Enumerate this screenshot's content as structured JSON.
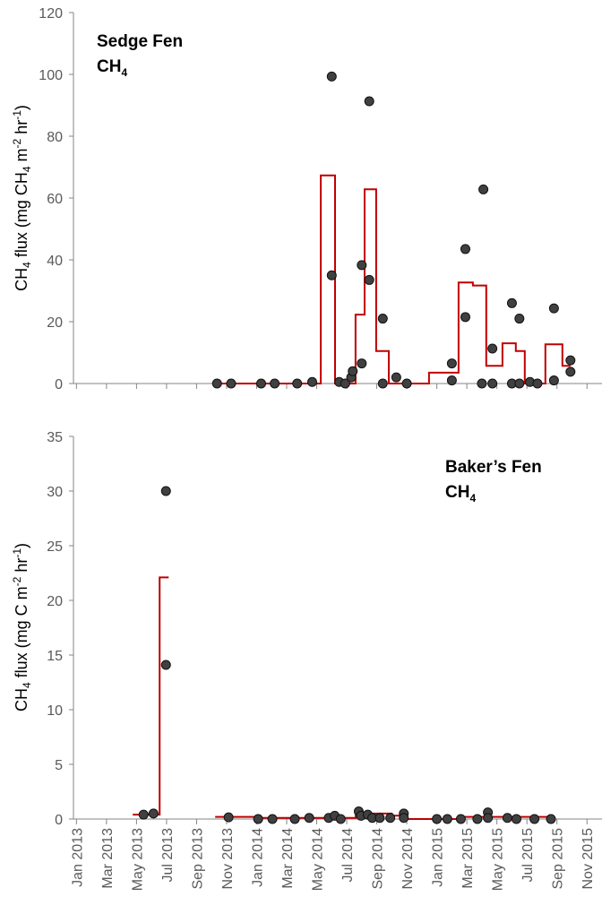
{
  "chart_data": [
    {
      "type": "scatter",
      "annotation": [
        "Sedge Fen",
        "CH",
        "4"
      ],
      "ylabel": [
        "CH",
        "4",
        " flux (mg CH",
        "4",
        " m",
        "-2",
        " hr",
        "-1",
        ")"
      ],
      "xlim": [
        -0.2,
        35
      ],
      "xticks": [
        0,
        2,
        4,
        6,
        8,
        10,
        12,
        14,
        16,
        18,
        20,
        22,
        24,
        26,
        28,
        30,
        32,
        34
      ],
      "ylim": [
        0,
        120
      ],
      "yticks": [
        0,
        20,
        40,
        60,
        80,
        100,
        120
      ],
      "series": [
        {
          "type": "scatter",
          "color": "#404040",
          "x": [
            9.36,
            10.3,
            12.3,
            13.2,
            14.7,
            15.7,
            17.0,
            17.0,
            17.5,
            17.9,
            18.3,
            18.4,
            19.0,
            19.0,
            19.5,
            19.5,
            20.4,
            20.4,
            21.3,
            22.0,
            25.0,
            25.0,
            25.9,
            25.9,
            27.0,
            27.1,
            27.7,
            27.7,
            29.0,
            29.0,
            29.5,
            29.5,
            30.2,
            30.7,
            31.8,
            31.8,
            32.9,
            32.9
          ],
          "values": [
            0,
            0,
            0,
            0,
            0,
            0.5,
            99.3,
            35,
            0.5,
            0,
            2,
            4,
            38.3,
            6.5,
            91.3,
            33.5,
            21,
            0,
            2,
            0,
            6.5,
            1,
            43.5,
            21.5,
            0,
            62.8,
            11.3,
            0,
            26,
            0,
            21,
            0,
            0.5,
            0,
            24.3,
            1,
            7.5,
            3.8
          ]
        },
        {
          "type": "line",
          "color": "#c00000",
          "x": [
            9.24,
            16.27,
            16.27,
            17.22,
            17.22,
            18.59,
            18.59,
            19.19,
            19.19,
            19.96,
            19.96,
            20.8,
            20.8,
            23.48,
            23.48,
            25.45,
            25.45,
            26.4,
            26.4,
            27.29,
            27.29,
            28.37,
            28.37,
            29.26,
            29.26,
            29.86,
            29.86,
            31.23,
            31.23,
            32.36,
            32.36,
            32.9
          ],
          "values": [
            0,
            0,
            67.3,
            67.3,
            0,
            0,
            22.3,
            22.3,
            62.8,
            62.8,
            10.5,
            10.5,
            0,
            0,
            3.5,
            3.5,
            32.7,
            32.7,
            31.7,
            31.7,
            5.7,
            5.7,
            13,
            13,
            10.5,
            10.5,
            0,
            0,
            12.7,
            12.7,
            5.7,
            5.7
          ]
        }
      ]
    },
    {
      "type": "scatter",
      "annotation": [
        "Baker’s Fen",
        "CH",
        "4"
      ],
      "ylabel": [
        "CH",
        "4",
        " flux (mg C m",
        "-2",
        " hr",
        "-1",
        ")"
      ],
      "xlim": [
        -0.2,
        35
      ],
      "xticks": [
        {
          "value": 0,
          "label": "Jan 2013"
        },
        {
          "value": 2,
          "label": "Mar 2013"
        },
        {
          "value": 4,
          "label": "May 2013"
        },
        {
          "value": 6,
          "label": "Jul 2013"
        },
        {
          "value": 8,
          "label": "Sep 2013"
        },
        {
          "value": 10,
          "label": "Nov 2013"
        },
        {
          "value": 12,
          "label": "Jan 2014"
        },
        {
          "value": 14,
          "label": "Mar 2014"
        },
        {
          "value": 16,
          "label": "May 2014"
        },
        {
          "value": 18,
          "label": "Jul 2014"
        },
        {
          "value": 20,
          "label": "Sep 2014"
        },
        {
          "value": 22,
          "label": "Nov 2014"
        },
        {
          "value": 24,
          "label": "Jan 2015"
        },
        {
          "value": 26,
          "label": "Mar 2015"
        },
        {
          "value": 28,
          "label": "May 2015"
        },
        {
          "value": 30,
          "label": "Jul 2015"
        },
        {
          "value": 32,
          "label": "Sep 2015"
        },
        {
          "value": 34,
          "label": "Nov 2015"
        }
      ],
      "ylim": [
        0,
        35
      ],
      "yticks": [
        0,
        5,
        10,
        15,
        20,
        25,
        30,
        35
      ],
      "series": [
        {
          "type": "scatter",
          "color": "#404040",
          "x": [
            4.47,
            5.13,
            5.96,
            5.96,
            10.13,
            12.1,
            13.05,
            14.54,
            15.5,
            16.8,
            17.2,
            17.6,
            18.8,
            18.95,
            19.4,
            19.7,
            20.2,
            20.9,
            21.8,
            21.8,
            24.0,
            24.7,
            25.6,
            26.7,
            27.4,
            27.4,
            28.7,
            29.3,
            30.5,
            31.6
          ],
          "values": [
            0.4,
            0.5,
            30,
            14.1,
            0.15,
            0,
            0,
            0,
            0.1,
            0.1,
            0.3,
            0,
            0.7,
            0.3,
            0.4,
            0.1,
            0.1,
            0.1,
            0.5,
            0.1,
            0,
            0,
            0,
            0,
            0.6,
            0.1,
            0.1,
            0,
            0,
            0
          ]
        },
        {
          "type": "line",
          "color": "#c00000",
          "x": [
            3.75,
            5.54,
            5.54,
            6.14,
            null,
            9.24,
            12.0,
            12.0,
            18.6,
            18.6,
            21.0,
            21.0,
            22.0,
            22.0,
            25.5,
            25.5,
            31.8
          ],
          "values": [
            0.4,
            0.4,
            22.1,
            22.1,
            null,
            0.2,
            0.2,
            0.1,
            0.1,
            0.5,
            0.5,
            0.3,
            0.3,
            0,
            0,
            0.2,
            0.2
          ]
        }
      ]
    }
  ]
}
